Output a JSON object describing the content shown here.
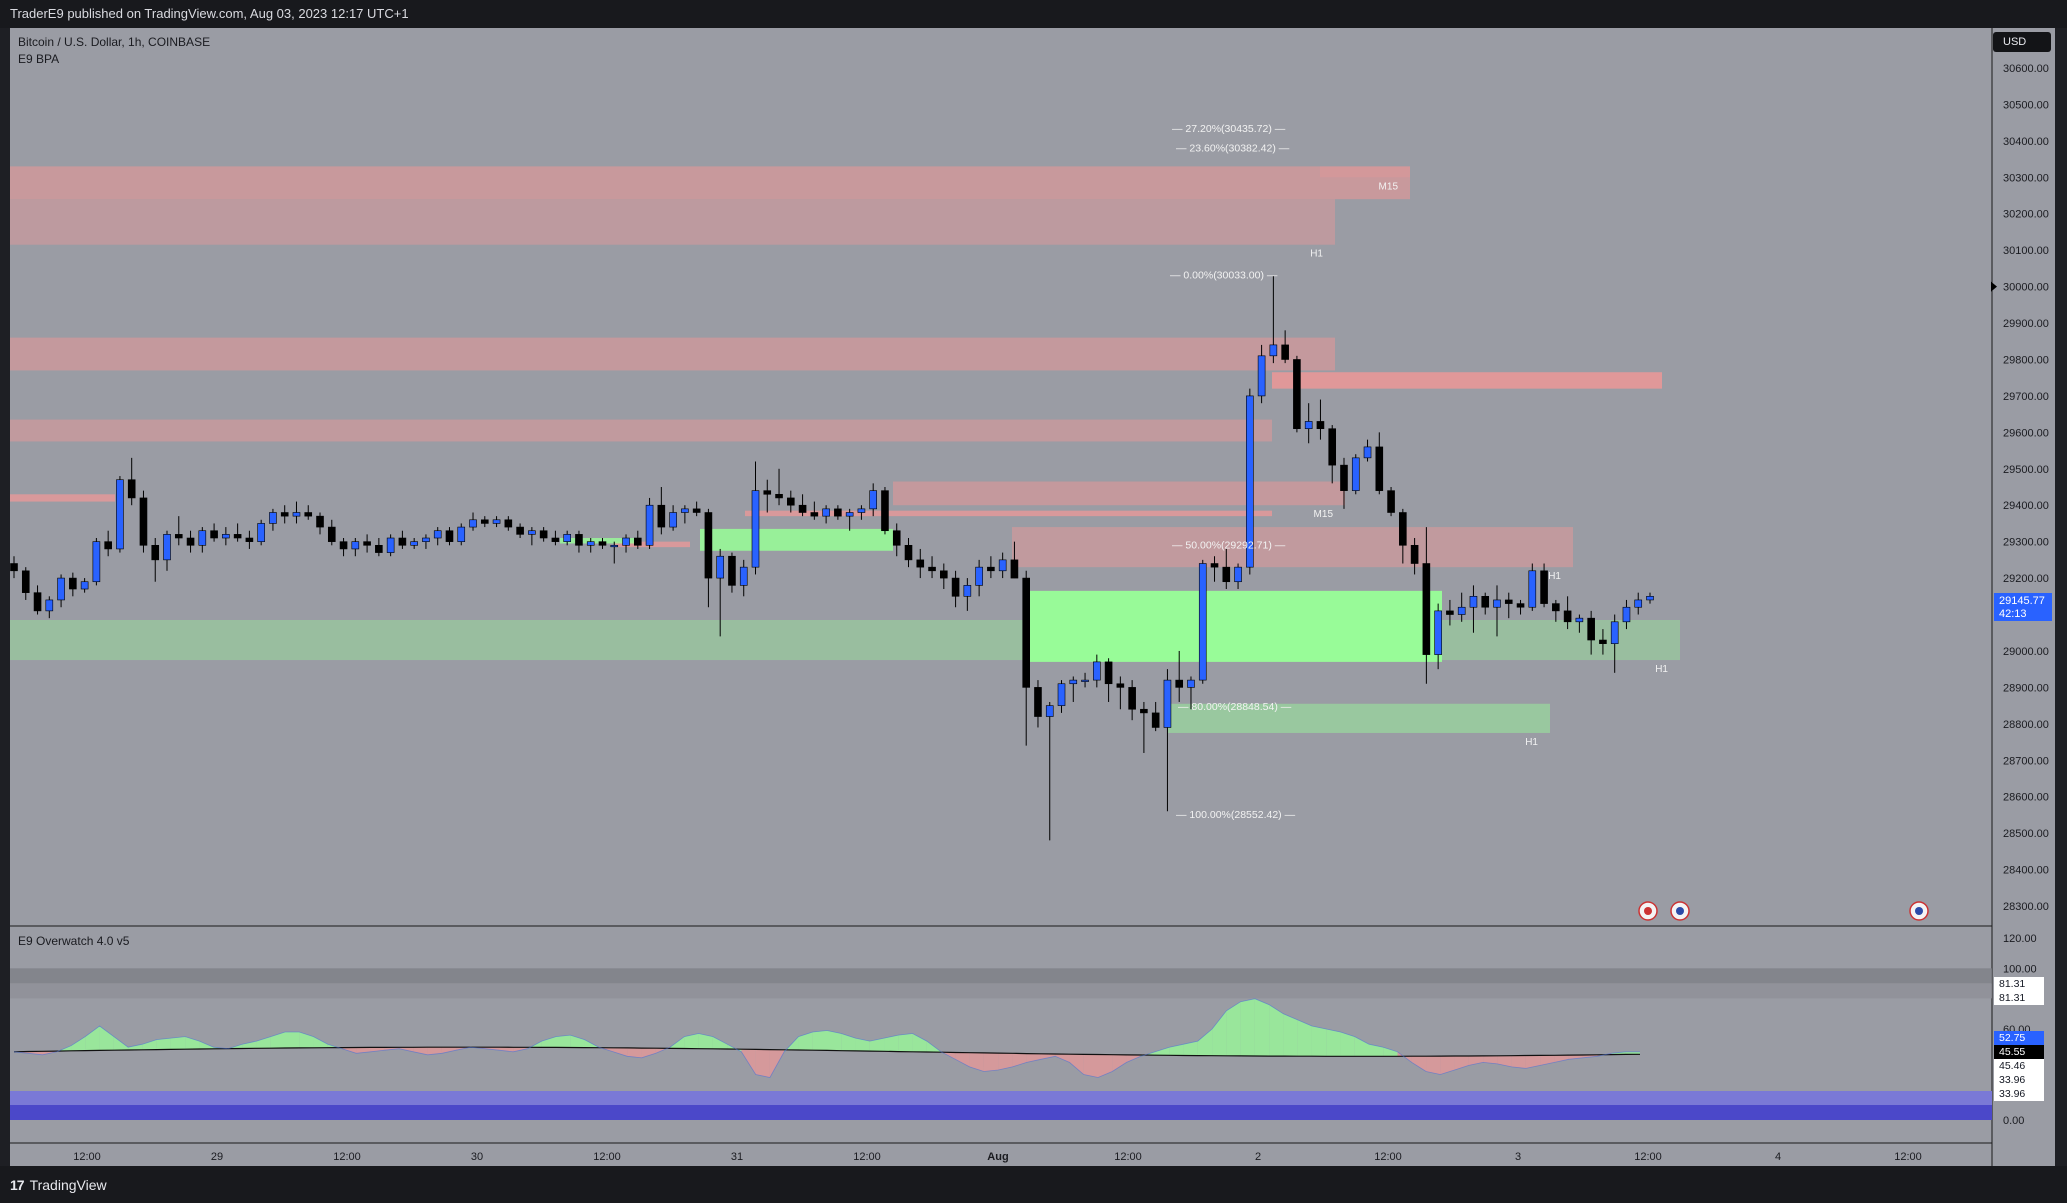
{
  "header": {
    "attribution": "TraderE9 published on TradingView.com, Aug 03, 2023 12:17 UTC+1"
  },
  "main_pane": {
    "symbol_title": "Bitcoin / U.S. Dollar, 1h, COINBASE",
    "indicator_name": "E9 BPA",
    "currency_button": "USD",
    "last_price": "29145.77",
    "countdown": "42:13"
  },
  "sub_pane": {
    "indicator_name": "E9 Overwatch 4.0 v5",
    "y_ticks": [
      "120.00",
      "100.00",
      "60.00",
      "0.00"
    ],
    "value_tags": [
      {
        "text": "81.31",
        "bg": "#ffffff",
        "fg": "#131722"
      },
      {
        "text": "81.31",
        "bg": "#ffffff",
        "fg": "#131722"
      },
      {
        "text": "52.75",
        "bg": "#2962ff",
        "fg": "#ffffff"
      },
      {
        "text": "45.55",
        "bg": "#000000",
        "fg": "#ffffff"
      },
      {
        "text": "45.46",
        "bg": "#ffffff",
        "fg": "#131722"
      },
      {
        "text": "33.96",
        "bg": "#ffffff",
        "fg": "#131722"
      },
      {
        "text": "33.96",
        "bg": "#ffffff",
        "fg": "#131722"
      }
    ]
  },
  "footer": {
    "brand": "TradingView"
  },
  "colors": {
    "bull": "#2962ff",
    "bear": "#000000",
    "supply": "#e89898",
    "demand": "#98ff98",
    "pane_bg": "#9a9ca4"
  },
  "chart_data": {
    "type": "candlestick",
    "y_ticks": [
      30600,
      30500,
      30400,
      30300,
      30200,
      30100,
      30000,
      29900,
      29800,
      29700,
      29600,
      29500,
      29400,
      29300,
      29200,
      29100,
      29000,
      28900,
      28800,
      28700,
      28600,
      28500,
      28400,
      28300
    ],
    "x_tick_labels": [
      "12:00",
      "29",
      "12:00",
      "30",
      "12:00",
      "31",
      "12:00",
      "Aug",
      "12:00",
      "2",
      "12:00",
      "3",
      "12:00",
      "4",
      "12:00"
    ],
    "ylim": [
      28270,
      30660
    ],
    "fib_levels": [
      {
        "label": "27.20%(30435.72)",
        "price": 30435.72
      },
      {
        "label": "23.60%(30382.42)",
        "price": 30382.42
      },
      {
        "label": "0.00%(30033.00)",
        "price": 30033.0
      },
      {
        "label": "50.00%(29292.71)",
        "price": 29292.71
      },
      {
        "label": "80.00%(28848.54)",
        "price": 28848.54
      },
      {
        "label": "100.00%(28552.42)",
        "price": 28552.42
      }
    ],
    "zones": [
      {
        "kind": "supply",
        "top": 30330,
        "bottom": 30240,
        "tf": "",
        "alpha": 0.6
      },
      {
        "kind": "supply",
        "top": 30330,
        "bottom": 30300,
        "tf": "M15",
        "alpha": 0.35
      },
      {
        "kind": "supply",
        "top": 30240,
        "bottom": 30115,
        "tf": "H1",
        "alpha": 0.45
      },
      {
        "kind": "supply",
        "top": 29860,
        "bottom": 29770,
        "tf": "",
        "alpha": 0.55
      },
      {
        "kind": "supply",
        "top": 29765,
        "bottom": 29720,
        "tf": "",
        "alpha": 0.9
      },
      {
        "kind": "supply",
        "top": 29635,
        "bottom": 29575,
        "tf": "",
        "alpha": 0.5
      },
      {
        "kind": "supply",
        "top": 29430,
        "bottom": 29410,
        "tf": "",
        "alpha": 0.8
      },
      {
        "kind": "supply",
        "top": 29465,
        "bottom": 29400,
        "tf": "M15",
        "alpha": 0.55
      },
      {
        "kind": "supply",
        "top": 29385,
        "bottom": 29370,
        "tf": "",
        "alpha": 0.8
      },
      {
        "kind": "supply",
        "top": 29340,
        "bottom": 29230,
        "tf": "H1",
        "alpha": 0.5
      },
      {
        "kind": "supply",
        "top": 29300,
        "bottom": 29285,
        "tf": "",
        "alpha": 0.8
      },
      {
        "kind": "demand",
        "top": 29335,
        "bottom": 29275,
        "tf": "",
        "alpha": 0.85
      },
      {
        "kind": "demand",
        "top": 29310,
        "bottom": 29295,
        "tf": "",
        "alpha": 0.8
      },
      {
        "kind": "demand",
        "top": 29165,
        "bottom": 28970,
        "tf": "",
        "alpha": 0.95
      },
      {
        "kind": "demand",
        "top": 29085,
        "bottom": 28975,
        "tf": "H1",
        "alpha": 0.35
      },
      {
        "kind": "demand",
        "top": 28855,
        "bottom": 28775,
        "tf": "H1",
        "alpha": 0.45
      }
    ],
    "candles": [
      [
        29240,
        29260,
        29200,
        29220
      ],
      [
        29220,
        29230,
        29140,
        29160
      ],
      [
        29160,
        29180,
        29100,
        29110
      ],
      [
        29110,
        29150,
        29090,
        29140
      ],
      [
        29140,
        29210,
        29120,
        29200
      ],
      [
        29200,
        29215,
        29150,
        29170
      ],
      [
        29170,
        29200,
        29160,
        29190
      ],
      [
        29190,
        29310,
        29180,
        29300
      ],
      [
        29300,
        29330,
        29260,
        29280
      ],
      [
        29280,
        29480,
        29270,
        29470
      ],
      [
        29470,
        29530,
        29400,
        29420
      ],
      [
        29420,
        29440,
        29270,
        29290
      ],
      [
        29290,
        29310,
        29190,
        29250
      ],
      [
        29250,
        29330,
        29220,
        29320
      ],
      [
        29320,
        29370,
        29290,
        29310
      ],
      [
        29310,
        29330,
        29270,
        29290
      ],
      [
        29290,
        29340,
        29270,
        29330
      ],
      [
        29330,
        29350,
        29300,
        29310
      ],
      [
        29310,
        29340,
        29290,
        29320
      ],
      [
        29320,
        29350,
        29300,
        29310
      ],
      [
        29310,
        29330,
        29280,
        29300
      ],
      [
        29300,
        29360,
        29290,
        29350
      ],
      [
        29350,
        29390,
        29330,
        29380
      ],
      [
        29380,
        29400,
        29350,
        29370
      ],
      [
        29370,
        29410,
        29350,
        29380
      ],
      [
        29380,
        29400,
        29360,
        29370
      ],
      [
        29370,
        29380,
        29320,
        29340
      ],
      [
        29340,
        29360,
        29290,
        29300
      ],
      [
        29300,
        29310,
        29260,
        29280
      ],
      [
        29280,
        29310,
        29260,
        29300
      ],
      [
        29300,
        29320,
        29270,
        29290
      ],
      [
        29290,
        29310,
        29260,
        29270
      ],
      [
        29270,
        29320,
        29260,
        29310
      ],
      [
        29310,
        29330,
        29280,
        29290
      ],
      [
        29290,
        29310,
        29280,
        29300
      ],
      [
        29300,
        29320,
        29280,
        29310
      ],
      [
        29310,
        29340,
        29290,
        29330
      ],
      [
        29330,
        29340,
        29290,
        29300
      ],
      [
        29300,
        29350,
        29290,
        29340
      ],
      [
        29340,
        29380,
        29330,
        29360
      ],
      [
        29360,
        29370,
        29340,
        29350
      ],
      [
        29350,
        29370,
        29340,
        29360
      ],
      [
        29360,
        29370,
        29330,
        29340
      ],
      [
        29340,
        29350,
        29310,
        29320
      ],
      [
        29320,
        29340,
        29290,
        29330
      ],
      [
        29330,
        29340,
        29300,
        29310
      ],
      [
        29310,
        29330,
        29290,
        29300
      ],
      [
        29300,
        29330,
        29290,
        29320
      ],
      [
        29320,
        29330,
        29270,
        29290
      ],
      [
        29290,
        29310,
        29270,
        29300
      ],
      [
        29300,
        29310,
        29280,
        29290
      ],
      [
        29290,
        29300,
        29240,
        29290
      ],
      [
        29290,
        29320,
        29270,
        29310
      ],
      [
        29310,
        29330,
        29280,
        29290
      ],
      [
        29290,
        29420,
        29280,
        29400
      ],
      [
        29400,
        29450,
        29320,
        29340
      ],
      [
        29340,
        29400,
        29330,
        29380
      ],
      [
        29380,
        29400,
        29350,
        29390
      ],
      [
        29390,
        29410,
        29370,
        29380
      ],
      [
        29380,
        29390,
        29120,
        29200
      ],
      [
        29200,
        29280,
        29040,
        29260
      ],
      [
        29260,
        29270,
        29160,
        29180
      ],
      [
        29180,
        29250,
        29150,
        29230
      ],
      [
        29230,
        29520,
        29210,
        29440
      ],
      [
        29440,
        29470,
        29380,
        29430
      ],
      [
        29430,
        29500,
        29400,
        29420
      ],
      [
        29420,
        29440,
        29380,
        29400
      ],
      [
        29400,
        29430,
        29370,
        29380
      ],
      [
        29380,
        29410,
        29360,
        29370
      ],
      [
        29370,
        29400,
        29350,
        29390
      ],
      [
        29390,
        29400,
        29360,
        29370
      ],
      [
        29370,
        29390,
        29330,
        29380
      ],
      [
        29380,
        29400,
        29360,
        29390
      ],
      [
        29390,
        29460,
        29370,
        29440
      ],
      [
        29440,
        29450,
        29320,
        29330
      ],
      [
        29330,
        29350,
        29260,
        29290
      ],
      [
        29290,
        29310,
        29230,
        29250
      ],
      [
        29250,
        29280,
        29200,
        29230
      ],
      [
        29230,
        29260,
        29200,
        29220
      ],
      [
        29220,
        29240,
        29170,
        29200
      ],
      [
        29200,
        29220,
        29120,
        29150
      ],
      [
        29150,
        29200,
        29110,
        29180
      ],
      [
        29180,
        29250,
        29150,
        29230
      ],
      [
        29230,
        29260,
        29200,
        29220
      ],
      [
        29220,
        29270,
        29200,
        29250
      ],
      [
        29250,
        29300,
        29200,
        29200
      ],
      [
        29200,
        29220,
        28740,
        28900
      ],
      [
        28900,
        28920,
        28790,
        28820
      ],
      [
        28820,
        28860,
        28480,
        28850
      ],
      [
        28850,
        28920,
        28830,
        28910
      ],
      [
        28910,
        28930,
        28860,
        28920
      ],
      [
        28920,
        28940,
        28900,
        28920
      ],
      [
        28920,
        28990,
        28900,
        28970
      ],
      [
        28970,
        28980,
        28860,
        28910
      ],
      [
        28910,
        28930,
        28840,
        28900
      ],
      [
        28900,
        28920,
        28810,
        28840
      ],
      [
        28840,
        28860,
        28720,
        28830
      ],
      [
        28830,
        28860,
        28780,
        28790
      ],
      [
        28790,
        28950,
        28560,
        28920
      ],
      [
        28920,
        29000,
        28860,
        28900
      ],
      [
        28900,
        28930,
        28840,
        28920
      ],
      [
        28920,
        29250,
        28910,
        29240
      ],
      [
        29240,
        29260,
        29190,
        29230
      ],
      [
        29230,
        29280,
        29170,
        29190
      ],
      [
        29190,
        29240,
        29170,
        29230
      ],
      [
        29230,
        29720,
        29210,
        29700
      ],
      [
        29700,
        29840,
        29680,
        29810
      ],
      [
        29810,
        30030,
        29790,
        29840
      ],
      [
        29840,
        29880,
        29790,
        29800
      ],
      [
        29800,
        29810,
        29600,
        29610
      ],
      [
        29610,
        29680,
        29570,
        29630
      ],
      [
        29630,
        29690,
        29580,
        29610
      ],
      [
        29610,
        29620,
        29460,
        29510
      ],
      [
        29510,
        29530,
        29390,
        29440
      ],
      [
        29440,
        29540,
        29430,
        29530
      ],
      [
        29530,
        29580,
        29520,
        29560
      ],
      [
        29560,
        29600,
        29430,
        29440
      ],
      [
        29440,
        29450,
        29370,
        29380
      ],
      [
        29380,
        29390,
        29240,
        29290
      ],
      [
        29290,
        29310,
        29210,
        29240
      ],
      [
        29240,
        29340,
        28910,
        28990
      ],
      [
        28990,
        29130,
        28950,
        29110
      ],
      [
        29110,
        29140,
        29070,
        29100
      ],
      [
        29100,
        29160,
        29080,
        29120
      ],
      [
        29120,
        29180,
        29050,
        29150
      ],
      [
        29150,
        29160,
        29100,
        29120
      ],
      [
        29120,
        29180,
        29040,
        29140
      ],
      [
        29140,
        29160,
        29090,
        29130
      ],
      [
        29130,
        29140,
        29100,
        29120
      ],
      [
        29120,
        29240,
        29110,
        29220
      ],
      [
        29220,
        29240,
        29120,
        29130
      ],
      [
        29130,
        29140,
        29080,
        29110
      ],
      [
        29110,
        29150,
        29060,
        29080
      ],
      [
        29080,
        29100,
        29050,
        29090
      ],
      [
        29090,
        29110,
        28990,
        29030
      ],
      [
        29030,
        29060,
        28990,
        29020
      ],
      [
        29020,
        29100,
        28940,
        29080
      ],
      [
        29080,
        29140,
        29060,
        29120
      ],
      [
        29120,
        29160,
        29100,
        29140
      ],
      [
        29140,
        29160,
        29130,
        29150
      ]
    ]
  }
}
